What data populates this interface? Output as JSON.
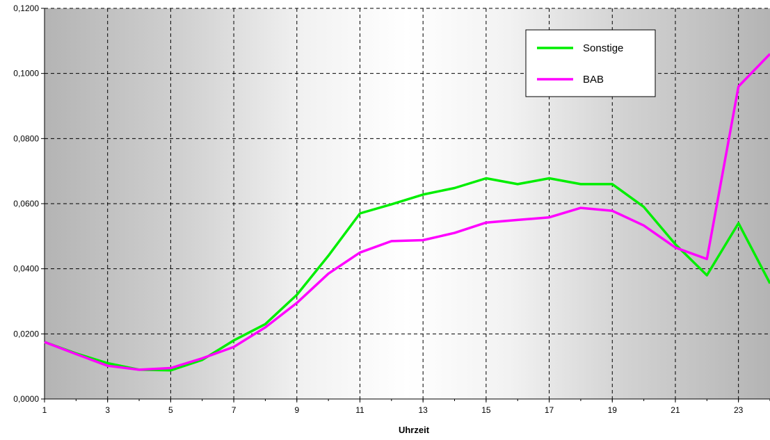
{
  "chart_data": {
    "type": "line",
    "xlabel": "Uhrzeit",
    "ylabel": "",
    "title": "",
    "x": [
      1,
      2,
      3,
      4,
      5,
      6,
      7,
      8,
      9,
      10,
      11,
      12,
      13,
      14,
      15,
      16,
      17,
      18,
      19,
      20,
      21,
      22,
      23,
      24
    ],
    "xlim": [
      1,
      24
    ],
    "ylim": [
      0,
      0.12
    ],
    "x_tick_labels": [
      "1",
      "3",
      "5",
      "7",
      "9",
      "11",
      "13",
      "15",
      "17",
      "19",
      "21",
      "23"
    ],
    "y_tick_labels": [
      "0,0000",
      "0,0200",
      "0,0400",
      "0,0600",
      "0,0800",
      "0,1000",
      "0,1200"
    ],
    "y_ticks": [
      0,
      0.02,
      0.04,
      0.06,
      0.08,
      0.1,
      0.12
    ],
    "grid": "dashed",
    "legend_position": "top-right",
    "series": [
      {
        "name": "Sonstige",
        "color": "#00ee00",
        "values": [
          0.0175,
          0.014,
          0.011,
          0.009,
          0.0088,
          0.012,
          0.018,
          0.023,
          0.032,
          0.044,
          0.057,
          0.0598,
          0.0628,
          0.0648,
          0.0678,
          0.066,
          0.0678,
          0.066,
          0.066,
          0.059,
          0.0475,
          0.038,
          0.054,
          0.0355
        ]
      },
      {
        "name": "BAB",
        "color": "#ff00ff",
        "values": [
          0.0175,
          0.0138,
          0.0102,
          0.009,
          0.0095,
          0.0125,
          0.016,
          0.022,
          0.0295,
          0.0385,
          0.045,
          0.0485,
          0.0488,
          0.051,
          0.0542,
          0.055,
          0.0558,
          0.0587,
          0.0578,
          0.0533,
          0.0465,
          0.043,
          0.096,
          0.106
        ]
      }
    ]
  }
}
